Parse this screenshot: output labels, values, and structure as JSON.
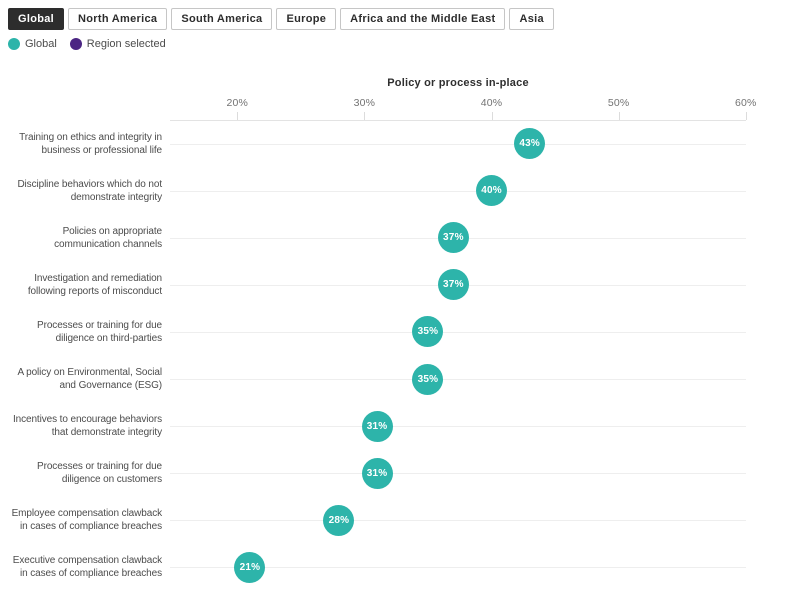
{
  "tabs": [
    {
      "label": "Global",
      "selected": true
    },
    {
      "label": "North America",
      "selected": false
    },
    {
      "label": "South America",
      "selected": false
    },
    {
      "label": "Europe",
      "selected": false
    },
    {
      "label": "Africa and the Middle East",
      "selected": false
    },
    {
      "label": "Asia",
      "selected": false
    }
  ],
  "legend": [
    {
      "label": "Global",
      "color": "#2db4aa"
    },
    {
      "label": "Region selected",
      "color": "#4b2583"
    }
  ],
  "colors": {
    "dot_teal": "#2db4aa",
    "region_purple": "#4b2583",
    "selected_tab_bg": "#2d2d2d",
    "gridline": "#eeeeee"
  },
  "chart_data": {
    "type": "scatter",
    "title": "Policy or process in-place",
    "xlabel": "Policy or process in-place",
    "ylabel": "",
    "x_ticks": [
      "20%",
      "30%",
      "40%",
      "50%",
      "60%"
    ],
    "x_tick_values": [
      20,
      30,
      40,
      50,
      60
    ],
    "xlim": [
      14.7,
      60
    ],
    "grid": "horizontal",
    "legend_position": "top-left",
    "categories": [
      "Training on ethics and integrity in\nbusiness or professional life",
      "Discipline behaviors which do not\ndemonstrate integrity",
      "Policies on appropriate\ncommunication channels",
      "Investigation and remediation\nfollowing reports of misconduct",
      "Processes or training for due\ndiligence on third-parties",
      "A policy on Environmental, Social\nand Governance (ESG)",
      "Incentives to encourage behaviors\nthat demonstrate integrity",
      "Processes or training for due\ndiligence on customers",
      "Employee compensation clawback\nin cases of compliance breaches",
      "Executive compensation clawback\nin cases of compliance breaches"
    ],
    "series": [
      {
        "name": "Global",
        "color": "#2db4aa",
        "values": [
          43,
          40,
          37,
          37,
          35,
          35,
          31,
          31,
          28,
          21
        ],
        "point_labels": [
          "43%",
          "40%",
          "37%",
          "37%",
          "35%",
          "35%",
          "31%",
          "31%",
          "28%",
          "21%"
        ]
      }
    ]
  }
}
